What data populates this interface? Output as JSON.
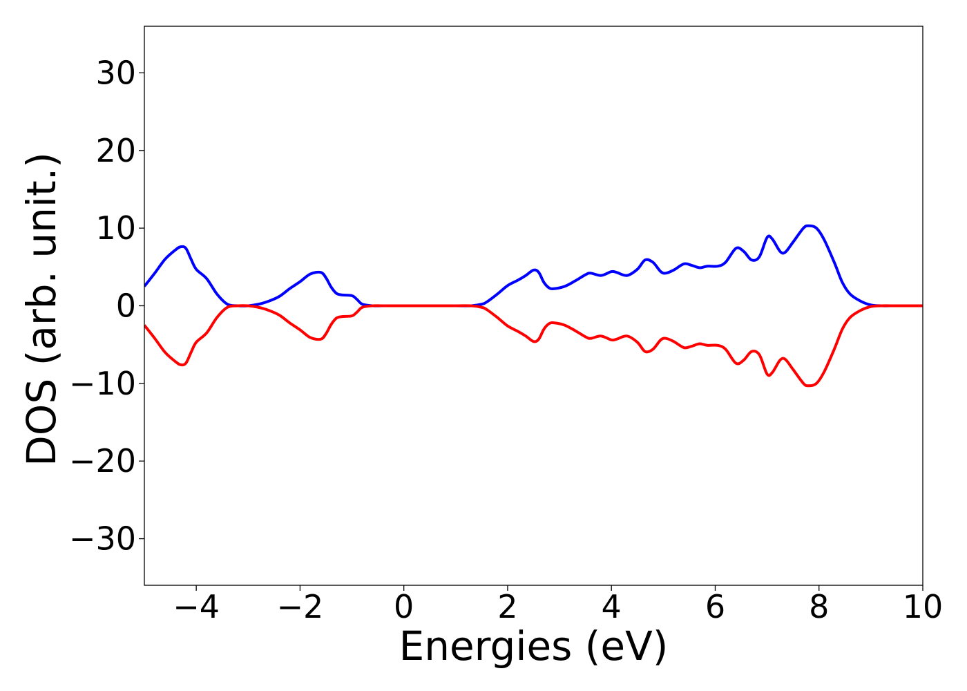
{
  "chart_data": {
    "type": "line",
    "title": "",
    "xlabel": "Energies (eV)",
    "ylabel": "DOS (arb. unit.)",
    "xlim": [
      -5,
      10
    ],
    "ylim": [
      -36,
      36
    ],
    "xticks": [
      {
        "value": -4,
        "label": "−4"
      },
      {
        "value": -2,
        "label": "−2"
      },
      {
        "value": 0,
        "label": "0"
      },
      {
        "value": 2,
        "label": "2"
      },
      {
        "value": 4,
        "label": "4"
      },
      {
        "value": 6,
        "label": "6"
      },
      {
        "value": 8,
        "label": "8"
      },
      {
        "value": 10,
        "label": "10"
      }
    ],
    "yticks": [
      {
        "value": 30,
        "label": "30"
      },
      {
        "value": 20,
        "label": "20"
      },
      {
        "value": 10,
        "label": "10"
      },
      {
        "value": 0,
        "label": "0"
      },
      {
        "value": -10,
        "label": "−10"
      },
      {
        "value": -20,
        "label": "−20"
      },
      {
        "value": -30,
        "label": "−30"
      }
    ],
    "grid": false,
    "legend": "none",
    "series": [
      {
        "color": "#0000ff",
        "x": [
          -5.0,
          -4.8,
          -4.6,
          -4.4,
          -4.3,
          -4.2,
          -4.1,
          -4.0,
          -3.8,
          -3.6,
          -3.4,
          -3.2,
          -3.0,
          -2.8,
          -2.6,
          -2.4,
          -2.2,
          -2.0,
          -1.8,
          -1.6,
          -1.5,
          -1.4,
          -1.3,
          -1.2,
          -1.0,
          -0.9,
          -0.8,
          -0.6,
          -0.4,
          0.0,
          0.5,
          1.0,
          1.3,
          1.5,
          1.6,
          1.8,
          2.0,
          2.2,
          2.35,
          2.5,
          2.6,
          2.7,
          2.8,
          2.9,
          3.1,
          3.3,
          3.5,
          3.6,
          3.8,
          4.0,
          4.1,
          4.3,
          4.5,
          4.65,
          4.8,
          4.95,
          5.05,
          5.2,
          5.4,
          5.55,
          5.7,
          5.85,
          6.05,
          6.2,
          6.4,
          6.55,
          6.7,
          6.85,
          7.0,
          7.1,
          7.25,
          7.35,
          7.5,
          7.7,
          7.8,
          7.95,
          8.1,
          8.3,
          8.45,
          8.6,
          8.8,
          9.0,
          9.2,
          9.5,
          10.0
        ],
        "y": [
          2.5,
          4.2,
          6.0,
          7.2,
          7.6,
          7.4,
          6.0,
          4.7,
          3.5,
          1.5,
          0.2,
          0.0,
          0.0,
          0.2,
          0.6,
          1.2,
          2.2,
          3.1,
          4.1,
          4.3,
          3.6,
          2.4,
          1.6,
          1.4,
          1.3,
          0.8,
          0.2,
          0.0,
          0.0,
          0.0,
          0.0,
          0.0,
          0.0,
          0.2,
          0.5,
          1.5,
          2.6,
          3.3,
          3.9,
          4.6,
          4.3,
          3.0,
          2.3,
          2.2,
          2.5,
          3.2,
          4.0,
          4.2,
          3.9,
          4.4,
          4.3,
          3.9,
          4.7,
          5.9,
          5.6,
          4.4,
          4.2,
          4.6,
          5.4,
          5.2,
          4.9,
          5.1,
          5.1,
          5.6,
          7.4,
          7.0,
          5.9,
          6.3,
          8.8,
          8.6,
          7.0,
          6.9,
          8.2,
          10.0,
          10.3,
          10.0,
          8.5,
          5.5,
          3.0,
          1.5,
          0.6,
          0.1,
          0.0,
          0.0,
          0.0
        ]
      },
      {
        "color": "#ff0000",
        "x": [
          -5.0,
          -4.8,
          -4.6,
          -4.4,
          -4.3,
          -4.2,
          -4.1,
          -4.0,
          -3.8,
          -3.6,
          -3.4,
          -3.2,
          -3.0,
          -2.8,
          -2.6,
          -2.4,
          -2.2,
          -2.0,
          -1.8,
          -1.6,
          -1.5,
          -1.4,
          -1.3,
          -1.2,
          -1.0,
          -0.9,
          -0.8,
          -0.6,
          -0.4,
          0.0,
          0.5,
          1.0,
          1.3,
          1.5,
          1.6,
          1.8,
          2.0,
          2.2,
          2.35,
          2.5,
          2.6,
          2.7,
          2.8,
          2.9,
          3.1,
          3.3,
          3.5,
          3.6,
          3.8,
          4.0,
          4.1,
          4.3,
          4.5,
          4.65,
          4.8,
          4.95,
          5.05,
          5.2,
          5.4,
          5.55,
          5.7,
          5.85,
          6.05,
          6.2,
          6.4,
          6.55,
          6.7,
          6.85,
          7.0,
          7.1,
          7.25,
          7.35,
          7.5,
          7.7,
          7.8,
          7.95,
          8.1,
          8.3,
          8.45,
          8.6,
          8.8,
          9.0,
          9.2,
          9.5,
          10.0
        ],
        "y": [
          -2.5,
          -4.2,
          -6.0,
          -7.2,
          -7.6,
          -7.4,
          -6.0,
          -4.7,
          -3.5,
          -1.5,
          -0.2,
          0.0,
          0.0,
          -0.2,
          -0.6,
          -1.2,
          -2.2,
          -3.1,
          -4.1,
          -4.3,
          -3.6,
          -2.4,
          -1.6,
          -1.4,
          -1.3,
          -0.8,
          -0.2,
          0.0,
          0.0,
          0.0,
          0.0,
          0.0,
          0.0,
          -0.2,
          -0.5,
          -1.5,
          -2.6,
          -3.3,
          -3.9,
          -4.6,
          -4.3,
          -3.0,
          -2.3,
          -2.2,
          -2.5,
          -3.2,
          -4.0,
          -4.2,
          -3.9,
          -4.4,
          -4.3,
          -3.9,
          -4.7,
          -5.9,
          -5.6,
          -4.4,
          -4.2,
          -4.6,
          -5.4,
          -5.2,
          -4.9,
          -5.1,
          -5.1,
          -5.6,
          -7.4,
          -7.0,
          -5.9,
          -6.3,
          -8.8,
          -8.6,
          -7.0,
          -6.9,
          -8.2,
          -10.0,
          -10.3,
          -10.0,
          -8.5,
          -5.5,
          -3.0,
          -1.5,
          -0.6,
          -0.1,
          0.0,
          0.0,
          0.0
        ]
      }
    ]
  }
}
